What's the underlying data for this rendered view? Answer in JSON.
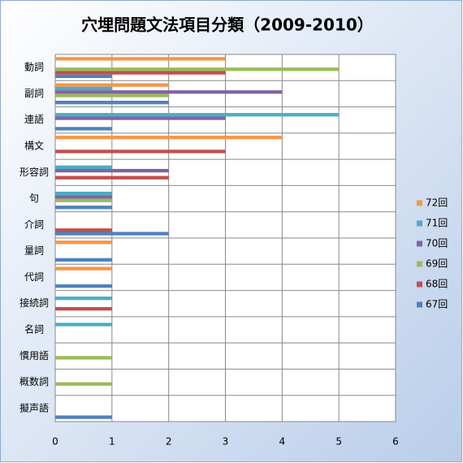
{
  "chart_data": {
    "type": "hbar",
    "title": "穴埋問題文法項目分類（2009-2010）",
    "categories": [
      "動詞",
      "副詞",
      "連語",
      "構文",
      "形容詞",
      "句",
      "介詞",
      "量詞",
      "代詞",
      "接続詞",
      "名詞",
      "慣用語",
      "概数詞",
      "擬声語"
    ],
    "series": [
      {
        "name": "72回",
        "color": "#f79646",
        "values": [
          3,
          2,
          0,
          4,
          0,
          0,
          0,
          1,
          1,
          0,
          0,
          0,
          0,
          0
        ]
      },
      {
        "name": "71回",
        "color": "#4bacc6",
        "values": [
          0,
          1,
          5,
          0,
          1,
          1,
          0,
          0,
          0,
          1,
          1,
          0,
          0,
          0
        ]
      },
      {
        "name": "70回",
        "color": "#8064a2",
        "values": [
          0,
          4,
          3,
          0,
          2,
          1,
          0,
          0,
          0,
          0,
          0,
          0,
          0,
          0
        ]
      },
      {
        "name": "69回",
        "color": "#9bbb59",
        "values": [
          5,
          2,
          0,
          0,
          0,
          1,
          0,
          0,
          0,
          0,
          0,
          1,
          1,
          0
        ]
      },
      {
        "name": "68回",
        "color": "#c0504d",
        "values": [
          3,
          0,
          0,
          3,
          2,
          0,
          1,
          0,
          0,
          1,
          0,
          0,
          0,
          0
        ]
      },
      {
        "name": "67回",
        "color": "#4f81bd",
        "values": [
          1,
          2,
          1,
          0,
          0,
          1,
          2,
          1,
          1,
          0,
          0,
          0,
          0,
          1
        ]
      }
    ],
    "xlim": [
      0,
      6
    ],
    "xticks": [
      0,
      1,
      2,
      3,
      4,
      5,
      6
    ],
    "grid": true,
    "legend": "right"
  }
}
